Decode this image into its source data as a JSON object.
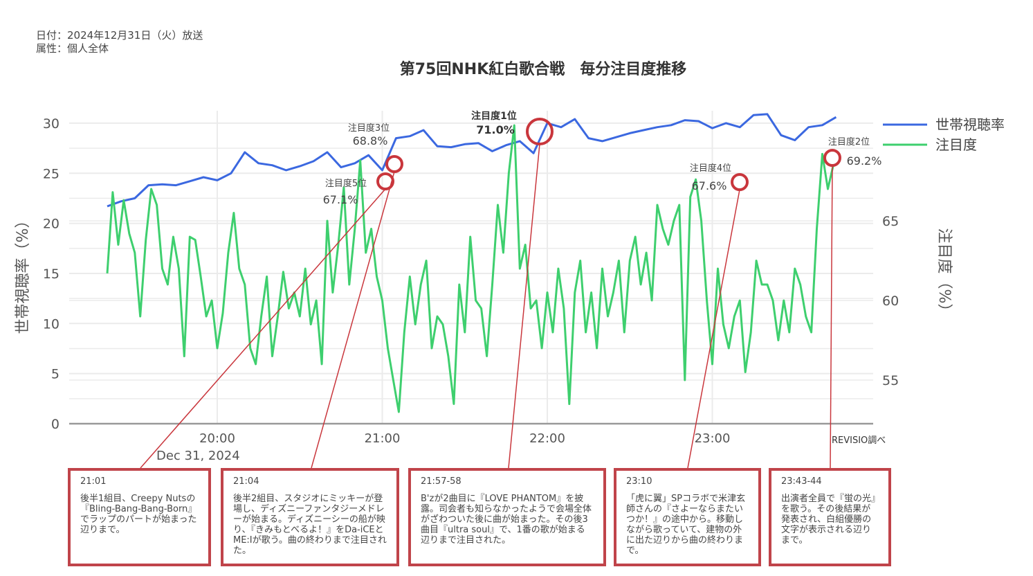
{
  "header": {
    "date_line": "日付：2024年12月31日（火）放送",
    "attribute_line": "属性：個人全体",
    "title": "第75回NHK紅白歌合戦　毎分注目度推移"
  },
  "source": "REVISIO調べ",
  "colors": {
    "household_rating": "#3b68e0",
    "attention": "#3ecf6e",
    "annotation": "#c9363c",
    "grid": "#ebebeb",
    "axis": "#999999"
  },
  "chart_data": {
    "type": "line",
    "title": "第75回NHK紅白歌合戦　毎分注目度推移",
    "xlabel": "Dec 31, 2024",
    "x_ticks": [
      "20:00",
      "21:00",
      "22:00",
      "23:00"
    ],
    "x_tick_sub": "Dec 31, 2024",
    "x_range": [
      "19:20",
      "23:45"
    ],
    "y_left": {
      "label": "世帯視聴率（%）",
      "ticks": [
        0,
        5,
        10,
        15,
        20,
        25,
        30
      ],
      "range": [
        0,
        30
      ]
    },
    "y_right": {
      "label": "注目度（%）",
      "ticks": [
        55,
        60,
        65
      ],
      "range": [
        52.7,
        71.5
      ]
    },
    "legend": [
      "世帯視聴率",
      "注目度"
    ],
    "legend_position": "top-right",
    "grid": true,
    "series": [
      {
        "name": "世帯視聴率",
        "axis": "left",
        "minutes": [
          0,
          5,
          10,
          15,
          20,
          25,
          30,
          35,
          40,
          45,
          50,
          55,
          60,
          65,
          70,
          75,
          80,
          85,
          90,
          95,
          100,
          105,
          110,
          115,
          120,
          125,
          130,
          135,
          140,
          145,
          150,
          155,
          160,
          165,
          170,
          175,
          180,
          185,
          190,
          195,
          200,
          205,
          210,
          215,
          220,
          225,
          230,
          235,
          240,
          245,
          250,
          255,
          260,
          265
        ],
        "values": [
          21.7,
          22.2,
          22.5,
          23.8,
          23.9,
          23.8,
          24.2,
          24.6,
          24.3,
          25.0,
          27.1,
          26.0,
          25.8,
          25.3,
          25.7,
          26.2,
          27.1,
          25.6,
          26.0,
          26.8,
          25.3,
          28.5,
          28.7,
          29.3,
          27.7,
          27.6,
          27.9,
          28.0,
          27.2,
          27.8,
          28.2,
          27.0,
          30.0,
          29.6,
          30.4,
          28.5,
          28.2,
          28.6,
          29.0,
          29.3,
          29.6,
          29.8,
          30.3,
          30.2,
          29.5,
          30.0,
          29.6,
          30.8,
          30.9,
          28.8,
          28.3,
          29.6,
          29.8,
          30.6
        ]
      },
      {
        "name": "注目度",
        "axis": "right",
        "minutes": [
          0,
          2,
          4,
          6,
          8,
          10,
          12,
          14,
          16,
          18,
          20,
          22,
          24,
          26,
          28,
          30,
          32,
          34,
          36,
          38,
          40,
          42,
          44,
          46,
          48,
          50,
          52,
          54,
          56,
          58,
          60,
          62,
          64,
          66,
          68,
          70,
          72,
          74,
          76,
          78,
          80,
          82,
          84,
          86,
          88,
          90,
          92,
          94,
          96,
          98,
          100,
          102,
          104,
          106,
          108,
          110,
          112,
          114,
          116,
          118,
          120,
          122,
          124,
          126,
          128,
          130,
          132,
          134,
          136,
          138,
          140,
          142,
          144,
          146,
          148,
          150,
          152,
          154,
          156,
          158,
          160,
          162,
          164,
          166,
          168,
          170,
          172,
          174,
          176,
          178,
          180,
          182,
          184,
          186,
          188,
          190,
          192,
          194,
          196,
          198,
          200,
          202,
          204,
          206,
          208,
          210,
          212,
          214,
          216,
          218,
          220,
          222,
          224,
          226,
          228,
          230,
          232,
          234,
          236,
          238,
          240,
          242,
          244,
          246,
          248,
          250,
          252,
          254,
          256,
          258,
          260,
          262,
          264
        ],
        "values": [
          61.7,
          66.8,
          63.5,
          66.3,
          64.2,
          63.0,
          59.0,
          63.8,
          67.0,
          66.0,
          62.0,
          61.0,
          64.0,
          62.0,
          56.5,
          64.0,
          63.8,
          61.5,
          59.0,
          60.0,
          57.0,
          59.2,
          63.0,
          65.5,
          62.0,
          61.0,
          57.0,
          56.0,
          59.0,
          61.5,
          56.5,
          59.0,
          61.8,
          59.5,
          60.5,
          59.0,
          62.0,
          58.5,
          60.0,
          56.0,
          65.0,
          60.5,
          63.5,
          67.1,
          61.0,
          64.5,
          68.8,
          63.0,
          64.5,
          61.5,
          60.0,
          57.0,
          55.0,
          53.0,
          58.0,
          61.5,
          58.5,
          61.0,
          62.5,
          57.0,
          59.0,
          58.5,
          56.5,
          53.5,
          61.0,
          58.0,
          64.0,
          60.0,
          59.5,
          56.5,
          61.0,
          66.0,
          63.0,
          68.0,
          71.0,
          62.0,
          63.5,
          59.5,
          60.0,
          57.0,
          60.5,
          58.0,
          62.0,
          59.5,
          53.5,
          60.5,
          62.5,
          58.0,
          60.5,
          57.0,
          62.0,
          59.0,
          60.5,
          62.5,
          58.0,
          62.5,
          64.0,
          61.0,
          63.0,
          60.0,
          66.0,
          64.5,
          63.5,
          65.0,
          66.0,
          55.0,
          66.5,
          67.6,
          65.0,
          60.0,
          56.0,
          62.0,
          58.5,
          57.0,
          59.0,
          60.0,
          55.5,
          58.0,
          62.5,
          61.0,
          61.0,
          60.0,
          57.5,
          60.0,
          58.0,
          62.0,
          61.0,
          59.0,
          58.0,
          64.5,
          69.2,
          67.0,
          68.5
        ]
      }
    ],
    "annotations": [
      {
        "rank_label": "注目度1位",
        "value": "71.0%",
        "time": "21:57-58",
        "bold": true
      },
      {
        "rank_label": "注目度2位",
        "value": "69.2%",
        "time": "23:43-44",
        "bold": false
      },
      {
        "rank_label": "注目度3位",
        "value": "68.8%",
        "time": "21:04",
        "bold": false
      },
      {
        "rank_label": "注目度4位",
        "value": "67.6%",
        "time": "23:10",
        "bold": false
      },
      {
        "rank_label": "注目度5位",
        "value": "67.1%",
        "time": "21:01",
        "bold": false
      }
    ]
  },
  "notes": [
    {
      "time": "21:01",
      "text": "後半1組目、Creepy Nutsの『Bling-Bang-Bang-Born』でラップのパートが始まった辺りまで。"
    },
    {
      "time": "21:04",
      "text": "後半2組目、スタジオにミッキーが登場し、ディズニーファンタジーメドレーが始まる。ディズニーシーの船が映り、『きみもとべるよ！』をDa-iCEとME:Iが歌う。曲の終わりまで注目された。"
    },
    {
      "time": "21:57-58",
      "text": "B'zが2曲目に『LOVE PHANTOM』を披露。司会者も知らなかったようで会場全体がざわついた後に曲が始まった。その後3曲目『ultra soul』で、1番の歌が始まる辺りまで注目された。"
    },
    {
      "time": "23:10",
      "text": "「虎に翼」SPコラボで米津玄師さんの『さよーならまたいつか！』の途中から。移動しながら歌っていて、建物の外に出た辺りから曲の終わりまで。"
    },
    {
      "time": "23:43-44",
      "text": "出演者全員で『蛍の光』を歌う。その後結果が発表され、白組優勝の文字が表示される辺りまで。"
    }
  ]
}
